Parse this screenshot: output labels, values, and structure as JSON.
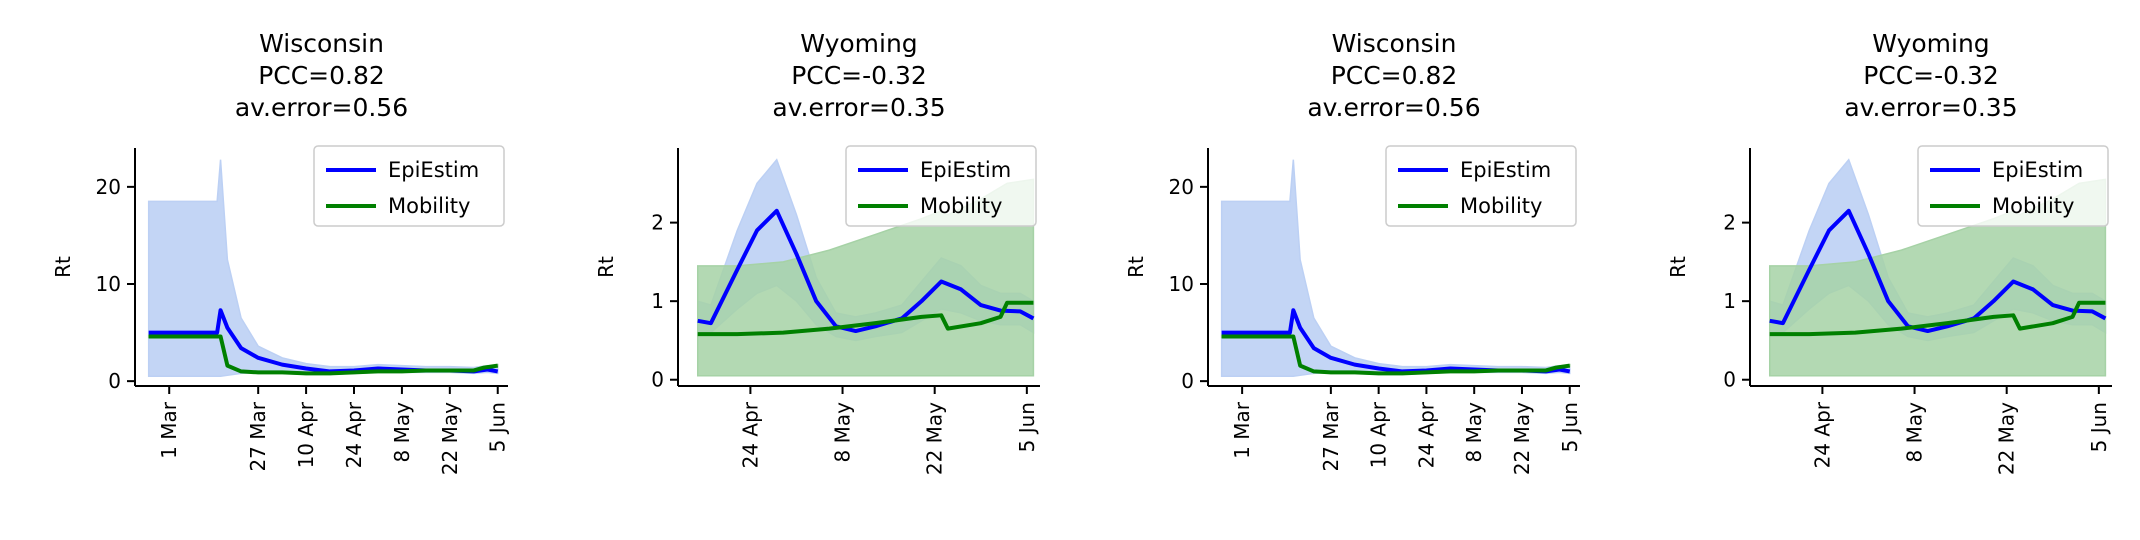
{
  "chart_data": [
    {
      "type": "line",
      "title": [
        "Wisconsin",
        "PCC=0.82",
        "av.error=0.56"
      ],
      "ylabel": "Rt",
      "xlabel": "",
      "ylim": [
        -0.5,
        24
      ],
      "xlim": [
        "2020-02-20",
        "2020-06-08"
      ],
      "yticks": [
        0,
        10,
        20
      ],
      "xticks": [
        "2020-03-01",
        "2020-03-27",
        "2020-04-10",
        "2020-04-24",
        "2020-05-08",
        "2020-05-22",
        "2020-06-05"
      ],
      "xtick_labels": [
        "1 Mar",
        "27 Mar",
        "10 Apr",
        "24 Apr",
        "8 May",
        "22 May",
        "5 Jun"
      ],
      "legend": {
        "position": "top-right",
        "entries": [
          "EpiEstim",
          "Mobility"
        ]
      },
      "series": [
        {
          "name": "EpiEstim",
          "color": "#0000ff",
          "band_color": "#bcd0f4",
          "x": [
            "2020-02-24",
            "2020-03-15",
            "2020-03-16",
            "2020-03-18",
            "2020-03-22",
            "2020-03-27",
            "2020-04-03",
            "2020-04-10",
            "2020-04-17",
            "2020-04-24",
            "2020-05-01",
            "2020-05-08",
            "2020-05-15",
            "2020-05-22",
            "2020-05-29",
            "2020-06-02",
            "2020-06-05"
          ],
          "y": [
            5.0,
            5.0,
            7.3,
            5.5,
            3.4,
            2.4,
            1.7,
            1.3,
            1.0,
            1.1,
            1.3,
            1.2,
            1.1,
            1.1,
            1.0,
            1.2,
            1.0
          ],
          "lower": [
            0.5,
            0.5,
            0.5,
            0.6,
            0.8,
            0.9,
            0.9,
            0.8,
            0.7,
            0.8,
            0.9,
            0.9,
            0.9,
            0.9,
            0.8,
            0.9,
            0.8
          ],
          "upper": [
            18.5,
            18.5,
            22.8,
            12.5,
            6.5,
            3.6,
            2.4,
            1.8,
            1.5,
            1.5,
            1.7,
            1.6,
            1.5,
            1.5,
            1.4,
            1.6,
            1.4
          ]
        },
        {
          "name": "Mobility",
          "color": "#008000",
          "band_color": "#a6d2a6",
          "x": [
            "2020-02-24",
            "2020-03-16",
            "2020-03-18",
            "2020-03-22",
            "2020-03-27",
            "2020-04-03",
            "2020-04-10",
            "2020-04-17",
            "2020-04-24",
            "2020-05-01",
            "2020-05-08",
            "2020-05-15",
            "2020-05-22",
            "2020-05-29",
            "2020-06-01",
            "2020-06-05"
          ],
          "y": [
            4.6,
            4.6,
            1.6,
            1.0,
            0.9,
            0.9,
            0.8,
            0.8,
            0.9,
            1.0,
            1.0,
            1.1,
            1.1,
            1.1,
            1.4,
            1.6
          ],
          "lower": [
            4.5,
            4.5,
            1.5,
            0.9,
            0.8,
            0.8,
            0.7,
            0.7,
            0.8,
            0.9,
            0.9,
            1.0,
            1.0,
            1.0,
            1.3,
            1.5
          ],
          "upper": [
            4.7,
            4.7,
            1.7,
            1.1,
            1.0,
            1.0,
            0.9,
            0.9,
            1.0,
            1.1,
            1.1,
            1.2,
            1.2,
            1.2,
            1.5,
            1.7
          ]
        }
      ]
    },
    {
      "type": "line",
      "title": [
        "Wyoming",
        "PCC=-0.32",
        "av.error=0.35"
      ],
      "ylabel": "Rt",
      "xlabel": "",
      "ylim": [
        -0.08,
        2.95
      ],
      "xlim": [
        "2020-04-13",
        "2020-06-07"
      ],
      "yticks": [
        0,
        1,
        2
      ],
      "xticks": [
        "2020-04-24",
        "2020-05-08",
        "2020-05-22",
        "2020-06-05"
      ],
      "xtick_labels": [
        "24 Apr",
        "8 May",
        "22 May",
        "5 Jun"
      ],
      "legend": {
        "position": "top-right",
        "entries": [
          "EpiEstim",
          "Mobility"
        ]
      },
      "series": [
        {
          "name": "EpiEstim",
          "color": "#0000ff",
          "band_color": "#bcd0f4",
          "x": [
            "2020-04-16",
            "2020-04-18",
            "2020-04-22",
            "2020-04-25",
            "2020-04-28",
            "2020-05-01",
            "2020-05-04",
            "2020-05-07",
            "2020-05-10",
            "2020-05-13",
            "2020-05-17",
            "2020-05-20",
            "2020-05-23",
            "2020-05-26",
            "2020-05-29",
            "2020-06-01",
            "2020-06-04",
            "2020-06-06"
          ],
          "y": [
            0.75,
            0.72,
            1.4,
            1.9,
            2.15,
            1.6,
            1.0,
            0.68,
            0.62,
            0.68,
            0.78,
            1.0,
            1.25,
            1.15,
            0.95,
            0.88,
            0.87,
            0.78
          ],
          "lower": [
            0.6,
            0.6,
            0.9,
            1.1,
            1.2,
            1.0,
            0.7,
            0.55,
            0.5,
            0.55,
            0.6,
            0.75,
            0.9,
            0.85,
            0.75,
            0.7,
            0.7,
            0.6
          ],
          "upper": [
            1.0,
            0.95,
            1.9,
            2.5,
            2.8,
            2.1,
            1.3,
            0.85,
            0.8,
            0.85,
            0.95,
            1.25,
            1.55,
            1.45,
            1.2,
            1.1,
            1.1,
            1.0
          ]
        },
        {
          "name": "Mobility",
          "color": "#008000",
          "band_color": "#a6d2a6",
          "x": [
            "2020-04-16",
            "2020-04-22",
            "2020-04-29",
            "2020-05-06",
            "2020-05-13",
            "2020-05-20",
            "2020-05-23",
            "2020-05-24",
            "2020-05-29",
            "2020-06-01",
            "2020-06-02",
            "2020-06-06"
          ],
          "y": [
            0.58,
            0.58,
            0.6,
            0.65,
            0.72,
            0.8,
            0.82,
            0.65,
            0.72,
            0.8,
            0.98,
            0.98
          ],
          "lower": [
            0.05,
            0.05,
            0.05,
            0.05,
            0.05,
            0.05,
            0.05,
            0.05,
            0.05,
            0.05,
            0.05,
            0.05
          ],
          "upper": [
            1.45,
            1.45,
            1.5,
            1.65,
            1.85,
            2.05,
            2.15,
            2.1,
            2.3,
            2.45,
            2.5,
            2.55
          ]
        }
      ]
    },
    {
      "type": "line",
      "title": [
        "Wisconsin",
        "PCC=0.82",
        "av.error=0.56"
      ],
      "ylabel": "Rt",
      "xlabel": "",
      "ylim": [
        -0.5,
        24
      ],
      "xlim": [
        "2020-02-20",
        "2020-06-08"
      ],
      "yticks": [
        0,
        10,
        20
      ],
      "xticks": [
        "2020-03-01",
        "2020-03-27",
        "2020-04-10",
        "2020-04-24",
        "2020-05-08",
        "2020-05-22",
        "2020-06-05"
      ],
      "xtick_labels": [
        "1 Mar",
        "27 Mar",
        "10 Apr",
        "24 Apr",
        "8 May",
        "22 May",
        "5 Jun"
      ],
      "legend": {
        "position": "top-right",
        "entries": [
          "EpiEstim",
          "Mobility"
        ]
      },
      "series": [
        {
          "name": "EpiEstim",
          "color": "#0000ff",
          "band_color": "#bcd0f4",
          "x": [
            "2020-02-24",
            "2020-03-15",
            "2020-03-16",
            "2020-03-18",
            "2020-03-22",
            "2020-03-27",
            "2020-04-03",
            "2020-04-10",
            "2020-04-17",
            "2020-04-24",
            "2020-05-01",
            "2020-05-08",
            "2020-05-15",
            "2020-05-22",
            "2020-05-29",
            "2020-06-02",
            "2020-06-05"
          ],
          "y": [
            5.0,
            5.0,
            7.3,
            5.5,
            3.4,
            2.4,
            1.7,
            1.3,
            1.0,
            1.1,
            1.3,
            1.2,
            1.1,
            1.1,
            1.0,
            1.2,
            1.0
          ],
          "lower": [
            0.5,
            0.5,
            0.5,
            0.6,
            0.8,
            0.9,
            0.9,
            0.8,
            0.7,
            0.8,
            0.9,
            0.9,
            0.9,
            0.9,
            0.8,
            0.9,
            0.8
          ],
          "upper": [
            18.5,
            18.5,
            22.8,
            12.5,
            6.5,
            3.6,
            2.4,
            1.8,
            1.5,
            1.5,
            1.7,
            1.6,
            1.5,
            1.5,
            1.4,
            1.6,
            1.4
          ]
        },
        {
          "name": "Mobility",
          "color": "#008000",
          "band_color": "#a6d2a6",
          "x": [
            "2020-02-24",
            "2020-03-16",
            "2020-03-18",
            "2020-03-22",
            "2020-03-27",
            "2020-04-03",
            "2020-04-10",
            "2020-04-17",
            "2020-04-24",
            "2020-05-01",
            "2020-05-08",
            "2020-05-15",
            "2020-05-22",
            "2020-05-29",
            "2020-06-01",
            "2020-06-05"
          ],
          "y": [
            4.6,
            4.6,
            1.6,
            1.0,
            0.9,
            0.9,
            0.8,
            0.8,
            0.9,
            1.0,
            1.0,
            1.1,
            1.1,
            1.1,
            1.4,
            1.6
          ],
          "lower": [
            4.5,
            4.5,
            1.5,
            0.9,
            0.8,
            0.8,
            0.7,
            0.7,
            0.8,
            0.9,
            0.9,
            1.0,
            1.0,
            1.0,
            1.3,
            1.5
          ],
          "upper": [
            4.7,
            4.7,
            1.7,
            1.1,
            1.0,
            1.0,
            0.9,
            0.9,
            1.0,
            1.1,
            1.1,
            1.2,
            1.2,
            1.2,
            1.5,
            1.7
          ]
        }
      ]
    },
    {
      "type": "line",
      "title": [
        "Wyoming",
        "PCC=-0.32",
        "av.error=0.35"
      ],
      "ylabel": "Rt",
      "xlabel": "",
      "ylim": [
        -0.08,
        2.95
      ],
      "xlim": [
        "2020-04-13",
        "2020-06-07"
      ],
      "yticks": [
        0,
        1,
        2
      ],
      "xticks": [
        "2020-04-24",
        "2020-05-08",
        "2020-05-22",
        "2020-06-05"
      ],
      "xtick_labels": [
        "24 Apr",
        "8 May",
        "22 May",
        "5 Jun"
      ],
      "legend": {
        "position": "top-right",
        "entries": [
          "EpiEstim",
          "Mobility"
        ]
      },
      "series": [
        {
          "name": "EpiEstim",
          "color": "#0000ff",
          "band_color": "#bcd0f4",
          "x": [
            "2020-04-16",
            "2020-04-18",
            "2020-04-22",
            "2020-04-25",
            "2020-04-28",
            "2020-05-01",
            "2020-05-04",
            "2020-05-07",
            "2020-05-10",
            "2020-05-13",
            "2020-05-17",
            "2020-05-20",
            "2020-05-23",
            "2020-05-26",
            "2020-05-29",
            "2020-06-01",
            "2020-06-04",
            "2020-06-06"
          ],
          "y": [
            0.75,
            0.72,
            1.4,
            1.9,
            2.15,
            1.6,
            1.0,
            0.68,
            0.62,
            0.68,
            0.78,
            1.0,
            1.25,
            1.15,
            0.95,
            0.88,
            0.87,
            0.78
          ],
          "lower": [
            0.6,
            0.6,
            0.9,
            1.1,
            1.2,
            1.0,
            0.7,
            0.55,
            0.5,
            0.55,
            0.6,
            0.75,
            0.9,
            0.85,
            0.75,
            0.7,
            0.7,
            0.6
          ],
          "upper": [
            1.0,
            0.95,
            1.9,
            2.5,
            2.8,
            2.1,
            1.3,
            0.85,
            0.8,
            0.85,
            0.95,
            1.25,
            1.55,
            1.45,
            1.2,
            1.1,
            1.1,
            1.0
          ]
        },
        {
          "name": "Mobility",
          "color": "#008000",
          "band_color": "#a6d2a6",
          "x": [
            "2020-04-16",
            "2020-04-22",
            "2020-04-29",
            "2020-05-06",
            "2020-05-13",
            "2020-05-20",
            "2020-05-23",
            "2020-05-24",
            "2020-05-29",
            "2020-06-01",
            "2020-06-02",
            "2020-06-06"
          ],
          "y": [
            0.58,
            0.58,
            0.6,
            0.65,
            0.72,
            0.8,
            0.82,
            0.65,
            0.72,
            0.8,
            0.98,
            0.98
          ],
          "lower": [
            0.05,
            0.05,
            0.05,
            0.05,
            0.05,
            0.05,
            0.05,
            0.05,
            0.05,
            0.05,
            0.05,
            0.05
          ],
          "upper": [
            1.45,
            1.45,
            1.5,
            1.65,
            1.85,
            2.05,
            2.15,
            2.1,
            2.3,
            2.45,
            2.5,
            2.55
          ]
        }
      ]
    }
  ]
}
